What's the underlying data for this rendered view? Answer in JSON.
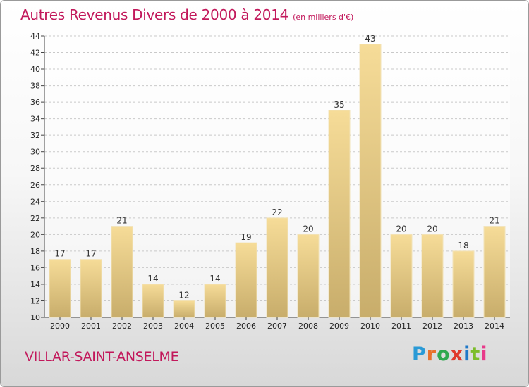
{
  "header": {
    "title": "Autres Revenus Divers de 2000 à 2014",
    "unit": "(en milliers d'€)"
  },
  "footer": {
    "commune": "VILLAR-SAINT-ANSELME",
    "logo": "Proxiti"
  },
  "colors": {
    "title": "#c2185b",
    "bar_light": "#f6dc98",
    "bar_dark": "#c8ad6b",
    "logo_letters": [
      "#2a9ad6",
      "#e8712b",
      "#2fa84f",
      "#e03a2b",
      "#1f78c8",
      "#7cbd2a",
      "#e83a8a"
    ]
  },
  "chart_data": {
    "type": "bar",
    "categories": [
      "2000",
      "2001",
      "2002",
      "2003",
      "2004",
      "2005",
      "2006",
      "2007",
      "2008",
      "2009",
      "2010",
      "2011",
      "2012",
      "2013",
      "2014"
    ],
    "values": [
      17,
      17,
      21,
      14,
      12,
      14,
      19,
      22,
      20,
      35,
      43,
      20,
      20,
      18,
      21
    ],
    "ylim": [
      10,
      44
    ],
    "yticks": [
      10,
      12,
      14,
      16,
      18,
      20,
      22,
      24,
      26,
      28,
      30,
      32,
      34,
      36,
      38,
      40,
      42,
      44
    ],
    "grid": true,
    "data_labels": true
  }
}
